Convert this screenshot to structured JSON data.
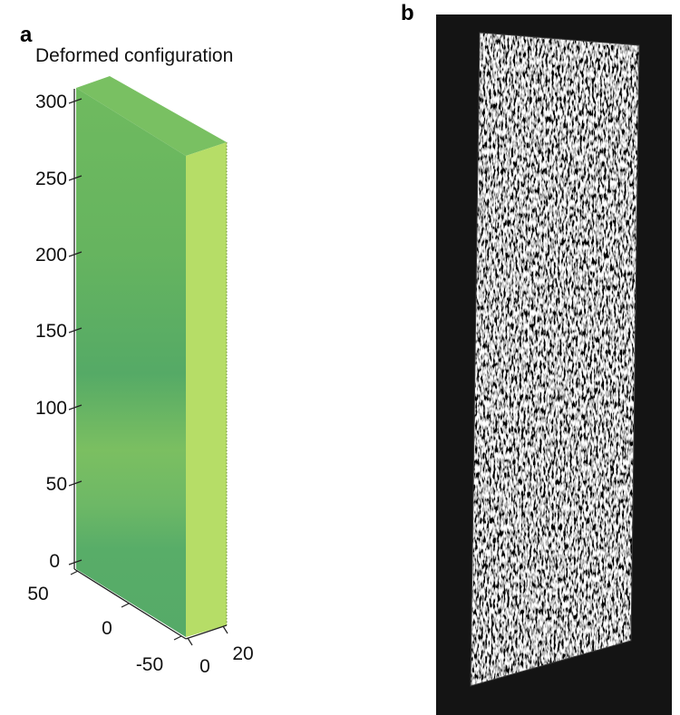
{
  "panel_a": {
    "letter": "a",
    "title": "Deformed configuration",
    "z_ticks": [
      "300",
      "250",
      "200",
      "150",
      "100",
      "50",
      "0"
    ],
    "y_ticks": [
      "50",
      "0",
      "-50"
    ],
    "x_ticks": [
      "0",
      "20"
    ],
    "colors": {
      "front_face": "#5aaf66",
      "top_face": "#79c062",
      "side_face": "#b6dd67"
    }
  },
  "panel_b": {
    "letter": "b",
    "colors": {
      "background": "#141414",
      "speckle_dark": "#2a2a2a",
      "speckle_light": "#d8d8d8"
    }
  }
}
